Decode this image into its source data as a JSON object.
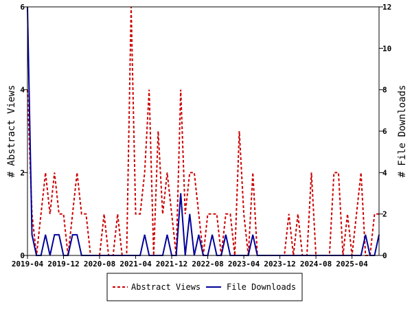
{
  "chart_data": {
    "type": "line",
    "x_tick_labels": [
      "2019-04",
      "2019-12",
      "2020-08",
      "2021-04",
      "2021-12",
      "2022-08",
      "2023-04",
      "2023-12",
      "2024-08",
      "2025-04"
    ],
    "y_left": {
      "label": "# Abstract Views",
      "ylim": [
        0,
        6
      ],
      "ticks": [
        0,
        2,
        4,
        6
      ]
    },
    "y_right": {
      "label": "# File Downloads",
      "ylim": [
        0,
        12
      ],
      "ticks": [
        0,
        2,
        4,
        6,
        8,
        10,
        12
      ]
    },
    "legend_position": "bottom",
    "grid": false,
    "series": [
      {
        "name": "Abstract Views",
        "axis": "left",
        "color": "#cc0000",
        "style": "dashed",
        "values": [
          4,
          1,
          0,
          1,
          2,
          1,
          2,
          1,
          1,
          0,
          1,
          2,
          1,
          1,
          0,
          0,
          0,
          1,
          0,
          0,
          1,
          0,
          0,
          6,
          1,
          1,
          2,
          4,
          0,
          3,
          1,
          2,
          1,
          0,
          4,
          1,
          2,
          2,
          1,
          0,
          1,
          1,
          1,
          0,
          1,
          1,
          0,
          3,
          1,
          0,
          2,
          0,
          0,
          0,
          0,
          0,
          0,
          0,
          1,
          0,
          1,
          0,
          0,
          2,
          0,
          0,
          0,
          0,
          2,
          2,
          0,
          1,
          0,
          1,
          2,
          0,
          0,
          1,
          1
        ]
      },
      {
        "name": "File Downloads",
        "axis": "right",
        "color": "#000099",
        "style": "solid",
        "values": [
          12,
          1,
          0,
          0,
          1,
          0,
          1,
          1,
          0,
          0,
          1,
          1,
          0,
          0,
          0,
          0,
          0,
          0,
          0,
          0,
          0,
          0,
          0,
          0,
          0,
          0,
          1,
          0,
          0,
          0,
          0,
          1,
          0,
          0,
          3,
          0,
          2,
          0,
          1,
          0,
          0,
          1,
          0,
          0,
          1,
          0,
          0,
          0,
          0,
          0,
          1,
          0,
          0,
          0,
          0,
          0,
          0,
          0,
          0,
          0,
          0,
          0,
          0,
          0,
          0,
          0,
          0,
          0,
          0,
          0,
          0,
          0,
          0,
          0,
          0,
          1,
          0,
          0,
          1
        ]
      }
    ]
  }
}
